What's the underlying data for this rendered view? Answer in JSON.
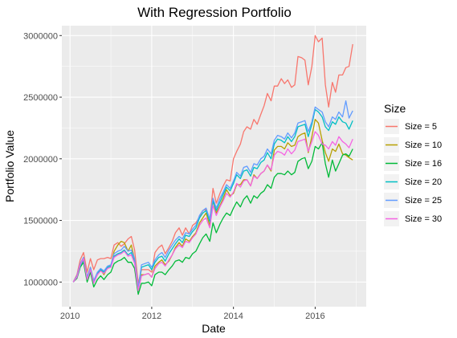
{
  "chart_data": {
    "type": "line",
    "title": "With Regression Portfolio",
    "xlabel": "Date",
    "ylabel": "Portfolio Value",
    "xlim": [
      2009.8,
      2017.25
    ],
    "ylim": [
      800000,
      3080000
    ],
    "x_ticks": [
      2010,
      2012,
      2014,
      2016
    ],
    "x_tick_labels": [
      "2010",
      "2012",
      "2014",
      "2016"
    ],
    "y_ticks": [
      1000000,
      1500000,
      2000000,
      2500000,
      3000000
    ],
    "y_tick_labels": [
      "1000000",
      "1500000",
      "2000000",
      "2500000",
      "3000000"
    ],
    "grid": true,
    "legend": {
      "title": "Size",
      "placement": "right"
    },
    "x": [
      2010.08,
      2010.17,
      2010.25,
      2010.33,
      2010.42,
      2010.5,
      2010.58,
      2010.67,
      2010.75,
      2010.83,
      2010.92,
      2011.0,
      2011.08,
      2011.17,
      2011.25,
      2011.33,
      2011.42,
      2011.5,
      2011.58,
      2011.67,
      2011.75,
      2011.83,
      2011.92,
      2012.0,
      2012.08,
      2012.17,
      2012.25,
      2012.33,
      2012.42,
      2012.5,
      2012.58,
      2012.67,
      2012.75,
      2012.83,
      2012.92,
      2013.0,
      2013.08,
      2013.17,
      2013.25,
      2013.33,
      2013.42,
      2013.5,
      2013.58,
      2013.67,
      2013.75,
      2013.83,
      2013.92,
      2014.0,
      2014.08,
      2014.17,
      2014.25,
      2014.33,
      2014.42,
      2014.5,
      2014.58,
      2014.67,
      2014.75,
      2014.83,
      2014.92,
      2015.0,
      2015.08,
      2015.17,
      2015.25,
      2015.33,
      2015.42,
      2015.5,
      2015.58,
      2015.67,
      2015.75,
      2015.83,
      2015.92,
      2016.0,
      2016.08,
      2016.17,
      2016.25,
      2016.33,
      2016.42,
      2016.5,
      2016.58,
      2016.67,
      2016.75,
      2016.83,
      2016.92
    ],
    "series": [
      {
        "name": "Size = 5",
        "color": "#F8766D",
        "values": [
          1000000,
          1060000,
          1180000,
          1240000,
          1080000,
          1190000,
          1100000,
          1180000,
          1190000,
          1190000,
          1200000,
          1190000,
          1300000,
          1320000,
          1290000,
          1310000,
          1350000,
          1370000,
          1260000,
          990000,
          1100000,
          1100000,
          1100000,
          1080000,
          1240000,
          1280000,
          1300000,
          1230000,
          1280000,
          1330000,
          1400000,
          1440000,
          1380000,
          1440000,
          1390000,
          1460000,
          1480000,
          1530000,
          1580000,
          1590000,
          1500000,
          1760000,
          1640000,
          1720000,
          1780000,
          1830000,
          1820000,
          2000000,
          2060000,
          2120000,
          2220000,
          2260000,
          2240000,
          2320000,
          2280000,
          2360000,
          2430000,
          2530000,
          2470000,
          2590000,
          2590000,
          2650000,
          2610000,
          2640000,
          2580000,
          2600000,
          2830000,
          2820000,
          2800000,
          2600000,
          2750000,
          3000000,
          2950000,
          2980000,
          2600000,
          2420000,
          2620000,
          2540000,
          2680000,
          2680000,
          2740000,
          2750000,
          2930000
        ]
      },
      {
        "name": "Size = 10",
        "color": "#B79F00",
        "values": [
          1000000,
          1040000,
          1140000,
          1200000,
          1040000,
          1120000,
          1010000,
          1060000,
          1100000,
          1060000,
          1120000,
          1130000,
          1250000,
          1300000,
          1330000,
          1320000,
          1250000,
          1300000,
          1180000,
          930000,
          1060000,
          1060000,
          1070000,
          1040000,
          1130000,
          1160000,
          1180000,
          1140000,
          1170000,
          1220000,
          1280000,
          1320000,
          1290000,
          1350000,
          1330000,
          1370000,
          1400000,
          1480000,
          1520000,
          1560000,
          1460000,
          1660000,
          1560000,
          1620000,
          1680000,
          1750000,
          1700000,
          1720000,
          1790000,
          1790000,
          1830000,
          1830000,
          1780000,
          1870000,
          1840000,
          1880000,
          1900000,
          1950000,
          1900000,
          2070000,
          2100000,
          2100000,
          2080000,
          2130000,
          2100000,
          2110000,
          2180000,
          2200000,
          2210000,
          2050000,
          2180000,
          2320000,
          2290000,
          2150000,
          2050000,
          1980000,
          2080000,
          2060000,
          2120000,
          2040000,
          2030000,
          2010000,
          1990000
        ]
      },
      {
        "name": "Size = 16",
        "color": "#00BA38",
        "values": [
          1000000,
          1030000,
          1120000,
          1160000,
          1000000,
          1080000,
          960000,
          1020000,
          1050000,
          1020000,
          1060000,
          1080000,
          1150000,
          1170000,
          1180000,
          1200000,
          1160000,
          1160000,
          1110000,
          900000,
          990000,
          990000,
          1000000,
          970000,
          1060000,
          1080000,
          1080000,
          1060000,
          1100000,
          1130000,
          1170000,
          1180000,
          1160000,
          1200000,
          1190000,
          1230000,
          1250000,
          1310000,
          1360000,
          1390000,
          1330000,
          1480000,
          1400000,
          1470000,
          1520000,
          1560000,
          1540000,
          1600000,
          1650000,
          1610000,
          1670000,
          1700000,
          1640000,
          1700000,
          1680000,
          1720000,
          1740000,
          1790000,
          1760000,
          1850000,
          1880000,
          1880000,
          1870000,
          1900000,
          1870000,
          1890000,
          1980000,
          2000000,
          2010000,
          1920000,
          1980000,
          2100000,
          2080000,
          2130000,
          1960000,
          1850000,
          1990000,
          1900000,
          1960000,
          2030000,
          2040000,
          2020000,
          2080000
        ]
      },
      {
        "name": "Size = 20",
        "color": "#00BFC4",
        "values": [
          1000000,
          1040000,
          1130000,
          1180000,
          1030000,
          1110000,
          1000000,
          1070000,
          1100000,
          1080000,
          1120000,
          1130000,
          1210000,
          1230000,
          1240000,
          1260000,
          1220000,
          1240000,
          1160000,
          940000,
          1120000,
          1130000,
          1140000,
          1100000,
          1160000,
          1200000,
          1210000,
          1170000,
          1230000,
          1270000,
          1310000,
          1350000,
          1320000,
          1380000,
          1370000,
          1410000,
          1440000,
          1520000,
          1560000,
          1580000,
          1490000,
          1660000,
          1580000,
          1650000,
          1710000,
          1770000,
          1740000,
          1800000,
          1870000,
          1840000,
          1900000,
          1910000,
          1860000,
          1930000,
          1920000,
          1970000,
          1990000,
          2050000,
          2000000,
          2120000,
          2160000,
          2150000,
          2130000,
          2180000,
          2140000,
          2180000,
          2260000,
          2270000,
          2280000,
          2180000,
          2280000,
          2400000,
          2380000,
          2340000,
          2260000,
          2230000,
          2300000,
          2280000,
          2340000,
          2300000,
          2290000,
          2240000,
          2310000
        ]
      },
      {
        "name": "Size = 25",
        "color": "#619CFF",
        "values": [
          1000000,
          1050000,
          1150000,
          1200000,
          1040000,
          1120000,
          1010000,
          1080000,
          1110000,
          1090000,
          1130000,
          1140000,
          1230000,
          1250000,
          1260000,
          1290000,
          1250000,
          1260000,
          1190000,
          950000,
          1140000,
          1150000,
          1160000,
          1120000,
          1180000,
          1220000,
          1240000,
          1200000,
          1260000,
          1300000,
          1340000,
          1370000,
          1350000,
          1400000,
          1390000,
          1430000,
          1460000,
          1540000,
          1580000,
          1600000,
          1510000,
          1680000,
          1600000,
          1680000,
          1730000,
          1790000,
          1760000,
          1820000,
          1890000,
          1860000,
          1930000,
          1940000,
          1890000,
          1960000,
          1950000,
          2000000,
          2020000,
          2080000,
          2040000,
          2150000,
          2190000,
          2180000,
          2160000,
          2210000,
          2170000,
          2210000,
          2290000,
          2300000,
          2310000,
          2220000,
          2300000,
          2420000,
          2400000,
          2380000,
          2300000,
          2260000,
          2340000,
          2320000,
          2380000,
          2340000,
          2470000,
          2330000,
          2390000
        ]
      },
      {
        "name": "Size = 30",
        "color": "#F564E3",
        "values": [
          1000000,
          1040000,
          1140000,
          1190000,
          1020000,
          1100000,
          990000,
          1060000,
          1090000,
          1070000,
          1110000,
          1120000,
          1200000,
          1220000,
          1230000,
          1250000,
          1210000,
          1220000,
          1150000,
          930000,
          1050000,
          1060000,
          1070000,
          1040000,
          1110000,
          1150000,
          1160000,
          1130000,
          1180000,
          1220000,
          1270000,
          1300000,
          1280000,
          1330000,
          1320000,
          1360000,
          1390000,
          1460000,
          1500000,
          1520000,
          1440000,
          1620000,
          1540000,
          1610000,
          1660000,
          1720000,
          1690000,
          1730000,
          1800000,
          1770000,
          1820000,
          1830000,
          1780000,
          1860000,
          1840000,
          1880000,
          1900000,
          1950000,
          1910000,
          2030000,
          2060000,
          2050000,
          2030000,
          2080000,
          2040000,
          2070000,
          2140000,
          2150000,
          2160000,
          2060000,
          2140000,
          2220000,
          2190000,
          2120000,
          2110000,
          2080000,
          2140000,
          2110000,
          2180000,
          2140000,
          2120000,
          2090000,
          2160000
        ]
      }
    ]
  }
}
